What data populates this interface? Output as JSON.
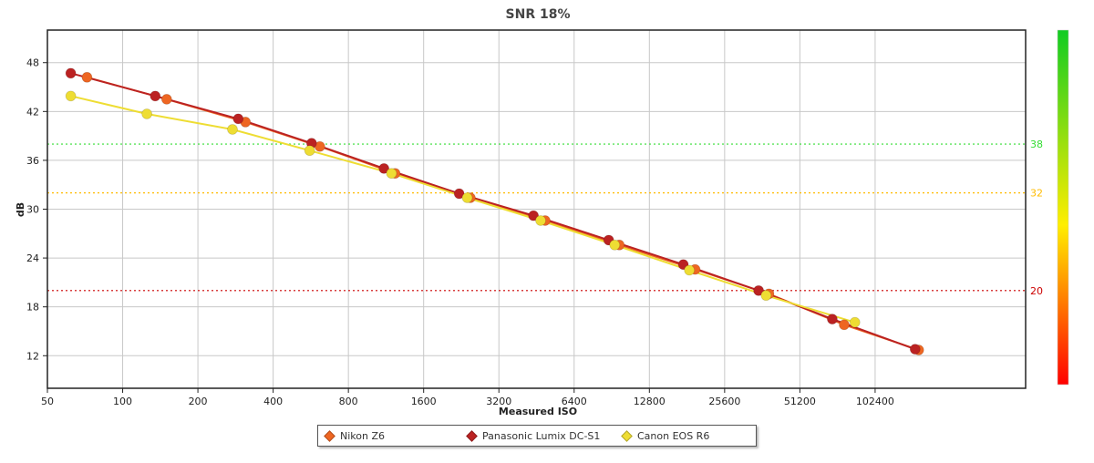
{
  "chart_data": {
    "type": "line",
    "title": "SNR 18%",
    "xlabel": "Measured ISO",
    "ylabel": "dB",
    "x_scale": "log2",
    "xlim": [
      50,
      409600
    ],
    "ylim": [
      8,
      52
    ],
    "x_ticks": [
      50,
      100,
      200,
      400,
      800,
      1600,
      3200,
      6400,
      12800,
      25600,
      51200,
      102400
    ],
    "x_tick_labels": [
      "50",
      "100",
      "200",
      "400",
      "800",
      "1600",
      "3200",
      "6400",
      "12800",
      "25600",
      "51200",
      "102400"
    ],
    "y_ticks": [
      12,
      18,
      24,
      30,
      36,
      42,
      48
    ],
    "y_tick_labels": [
      "12",
      "18",
      "24",
      "30",
      "36",
      "42",
      "48"
    ],
    "grid": true,
    "reference_lines": [
      {
        "y": 38,
        "label": "38",
        "color": "#33dd33"
      },
      {
        "y": 32,
        "label": "32",
        "color": "#ffbb00"
      },
      {
        "y": 20,
        "label": "20",
        "color": "#cc0000"
      }
    ],
    "color_scale": {
      "from": "#ff0000",
      "via": "#ffff00",
      "to": "#00cc00"
    },
    "legend_position": "bottom-center",
    "series": [
      {
        "name": "Nikon Z6",
        "color": "#ee6622",
        "x": [
          72,
          150,
          310,
          615,
          1230,
          2460,
          4900,
          9700,
          19500,
          38500,
          77000,
          153000
        ],
        "y": [
          46.2,
          43.5,
          40.7,
          37.7,
          34.4,
          31.4,
          28.6,
          25.6,
          22.6,
          19.6,
          15.8,
          12.7
        ]
      },
      {
        "name": "Panasonic Lumix DC-S1",
        "color": "#bb2222",
        "x": [
          62,
          135,
          290,
          570,
          1110,
          2220,
          4400,
          8800,
          17500,
          35000,
          69000,
          148000
        ],
        "y": [
          46.7,
          43.9,
          41.1,
          38.1,
          35.0,
          31.9,
          29.2,
          26.2,
          23.2,
          20.0,
          16.5,
          12.8
        ]
      },
      {
        "name": "Canon EOS R6",
        "color": "#eedd33",
        "x": [
          62,
          125,
          275,
          560,
          1190,
          2390,
          4700,
          9300,
          18500,
          37500,
          85000
        ],
        "y": [
          43.9,
          41.7,
          39.8,
          37.2,
          34.4,
          31.4,
          28.6,
          25.6,
          22.5,
          19.4,
          16.1
        ]
      }
    ]
  }
}
